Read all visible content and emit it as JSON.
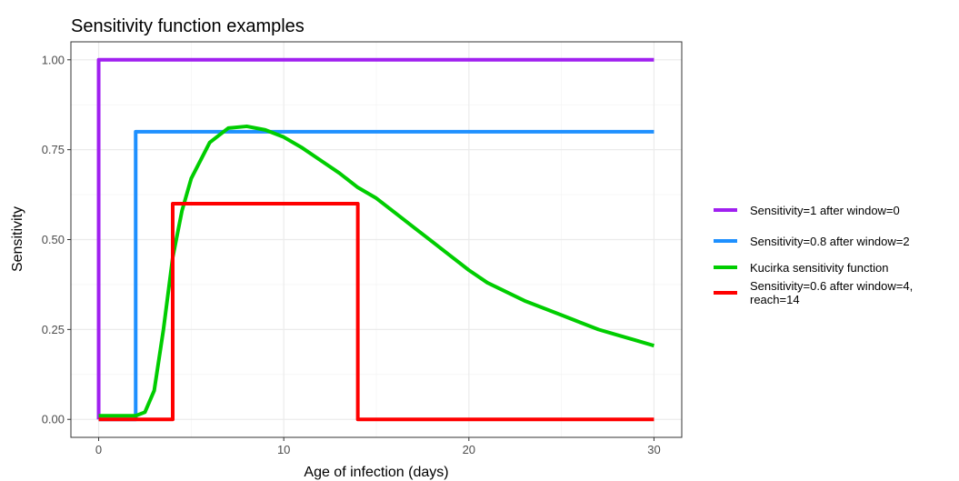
{
  "chart_data": {
    "type": "line",
    "title": "Sensitivity function examples",
    "x_label": "Age of infection (days)",
    "y_label": "Sensitivity",
    "xlim": [
      -1.5,
      31.5
    ],
    "xticks": [
      0,
      10,
      20,
      30
    ],
    "x_minor_ticks": [
      5,
      15,
      25
    ],
    "ylim": [
      -0.05,
      1.05
    ],
    "yticks": [
      {
        "value": 0,
        "label": "0.00"
      },
      {
        "value": 0.25,
        "label": "0.25"
      },
      {
        "value": 0.5,
        "label": "0.50"
      },
      {
        "value": 0.75,
        "label": "0.75"
      },
      {
        "value": 1,
        "label": "1.00"
      }
    ],
    "y_minor_ticks": [
      0.125,
      0.375,
      0.625,
      0.875
    ],
    "grid": true,
    "legend": "right",
    "series": [
      {
        "name": "Sensitivity=1 after window=0",
        "color": "#a020f0",
        "x": [
          0,
          0,
          30
        ],
        "values": [
          0,
          1,
          1
        ]
      },
      {
        "name": "Sensitivity=0.8 after window=2",
        "color": "#1e90ff",
        "x": [
          0,
          2,
          2,
          30
        ],
        "values": [
          0,
          0,
          0.8,
          0.8
        ]
      },
      {
        "name": "Kucirka sensitivity function",
        "color": "#00cd00",
        "x": [
          0,
          1,
          2,
          2.5,
          3,
          3.5,
          4,
          4.5,
          5,
          6,
          7,
          8,
          9,
          10,
          11,
          12,
          13,
          14,
          15,
          16,
          17,
          18,
          19,
          20,
          21,
          22,
          23,
          24,
          25,
          26,
          27,
          28,
          29,
          30
        ],
        "values": [
          0.01,
          0.01,
          0.01,
          0.02,
          0.08,
          0.25,
          0.45,
          0.58,
          0.67,
          0.77,
          0.81,
          0.815,
          0.805,
          0.785,
          0.755,
          0.72,
          0.685,
          0.645,
          0.615,
          0.575,
          0.535,
          0.495,
          0.455,
          0.415,
          0.38,
          0.355,
          0.33,
          0.31,
          0.29,
          0.27,
          0.25,
          0.235,
          0.22,
          0.205
        ]
      },
      {
        "name": "Sensitivity=0.6 after window=4,\nreach=14",
        "color": "#ff0000",
        "x": [
          0,
          4,
          4,
          14,
          14,
          30
        ],
        "values": [
          0,
          0,
          0.6,
          0.6,
          0,
          0
        ]
      }
    ]
  }
}
